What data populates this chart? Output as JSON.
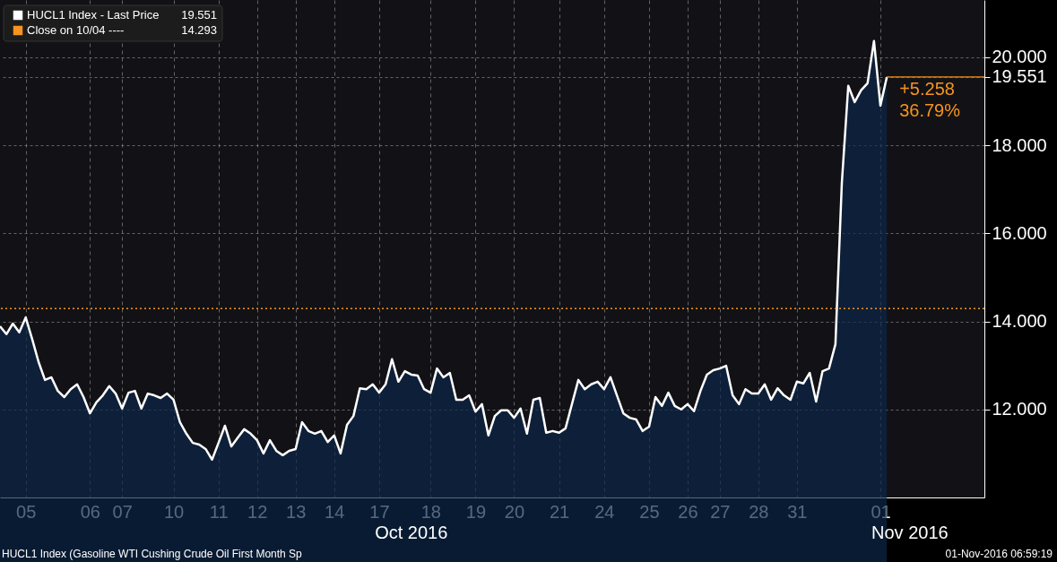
{
  "chart_data": {
    "type": "area",
    "categories": [
      null,
      null,
      null,
      null,
      "05",
      null,
      null,
      null,
      null,
      null,
      null,
      null,
      null,
      null,
      "06",
      null,
      null,
      null,
      null,
      "07",
      null,
      null,
      null,
      null,
      null,
      null,
      null,
      "10",
      null,
      null,
      null,
      null,
      null,
      null,
      "11",
      null,
      null,
      null,
      null,
      null,
      "12",
      null,
      null,
      null,
      null,
      null,
      "13",
      null,
      null,
      null,
      null,
      null,
      "14",
      null,
      null,
      null,
      null,
      null,
      null,
      "17",
      null,
      null,
      null,
      null,
      null,
      null,
      null,
      "18",
      null,
      null,
      null,
      null,
      null,
      null,
      "19",
      null,
      null,
      null,
      null,
      null,
      "20",
      null,
      null,
      null,
      null,
      null,
      null,
      "21",
      null,
      null,
      null,
      null,
      null,
      null,
      "24",
      null,
      null,
      null,
      null,
      null,
      null,
      "25",
      null,
      null,
      null,
      null,
      null,
      "26",
      null,
      null,
      null,
      null,
      "27",
      null,
      null,
      null,
      null,
      null,
      "28",
      null,
      null,
      null,
      null,
      null,
      "31",
      null,
      null,
      null,
      null,
      null,
      null,
      null,
      null,
      null,
      null,
      null,
      null,
      "01",
      null
    ],
    "series": [
      {
        "name": "HUCL1 Index - Last Price",
        "color": "#ffffff",
        "values": [
          13.89,
          13.71,
          13.95,
          13.75,
          14.09,
          13.6,
          13.08,
          12.67,
          12.73,
          12.42,
          12.28,
          12.46,
          12.57,
          12.28,
          11.91,
          12.16,
          12.32,
          12.53,
          12.36,
          12.02,
          12.38,
          12.42,
          12.02,
          12.36,
          12.32,
          12.26,
          12.36,
          12.22,
          11.71,
          11.45,
          11.24,
          11.2,
          11.1,
          10.86,
          11.24,
          11.63,
          11.16,
          11.36,
          11.55,
          11.45,
          11.3,
          11.0,
          11.3,
          11.06,
          10.96,
          11.06,
          11.1,
          11.71,
          11.51,
          11.45,
          11.51,
          11.26,
          11.41,
          11.0,
          11.65,
          11.85,
          12.48,
          12.46,
          12.57,
          12.38,
          12.57,
          13.14,
          12.63,
          12.87,
          12.79,
          12.77,
          12.46,
          12.38,
          12.93,
          12.73,
          12.83,
          12.22,
          12.22,
          12.32,
          11.95,
          12.12,
          11.41,
          11.85,
          11.98,
          11.98,
          11.81,
          12.02,
          11.45,
          12.22,
          12.26,
          11.47,
          11.51,
          11.47,
          11.57,
          12.12,
          12.67,
          12.46,
          12.57,
          12.63,
          12.46,
          12.73,
          12.32,
          11.91,
          11.81,
          11.77,
          11.51,
          11.61,
          12.28,
          12.08,
          12.38,
          12.08,
          12.0,
          12.12,
          11.96,
          12.42,
          12.79,
          12.89,
          12.93,
          12.99,
          12.32,
          12.12,
          12.46,
          12.36,
          12.36,
          12.57,
          12.22,
          12.48,
          12.32,
          12.22,
          12.63,
          12.59,
          12.83,
          12.18,
          12.87,
          12.93,
          13.48,
          17.15,
          19.35,
          18.98,
          19.25,
          19.41,
          20.37,
          18.9,
          19.551
        ]
      }
    ],
    "ylim": [
      10,
      21.3
    ],
    "yticks": [
      {
        "value": 12,
        "label": "12.000"
      },
      {
        "value": 14,
        "label": "14.000"
      },
      {
        "value": 16,
        "label": "16.000"
      },
      {
        "value": 18,
        "label": "18.000"
      },
      {
        "value": 19.551,
        "label": "19.551"
      },
      {
        "value": 20,
        "label": "20.000"
      }
    ],
    "ref_lines": [
      {
        "axis": "y",
        "value": 14.293,
        "label": "Close on 10/04 ----",
        "color": "#f7931e",
        "line_style": "dotted"
      }
    ],
    "annotations": [
      "19.551",
      "14.293",
      "+5.258",
      "36.79%",
      "Oct 2016",
      "Nov 2016",
      "HUCL1 Index (Gasoline WTI Cushing Crude Oil First Month Sp",
      "01-Nov-2016 06:59:19"
    ],
    "grid": true,
    "legend": "top left"
  }
}
